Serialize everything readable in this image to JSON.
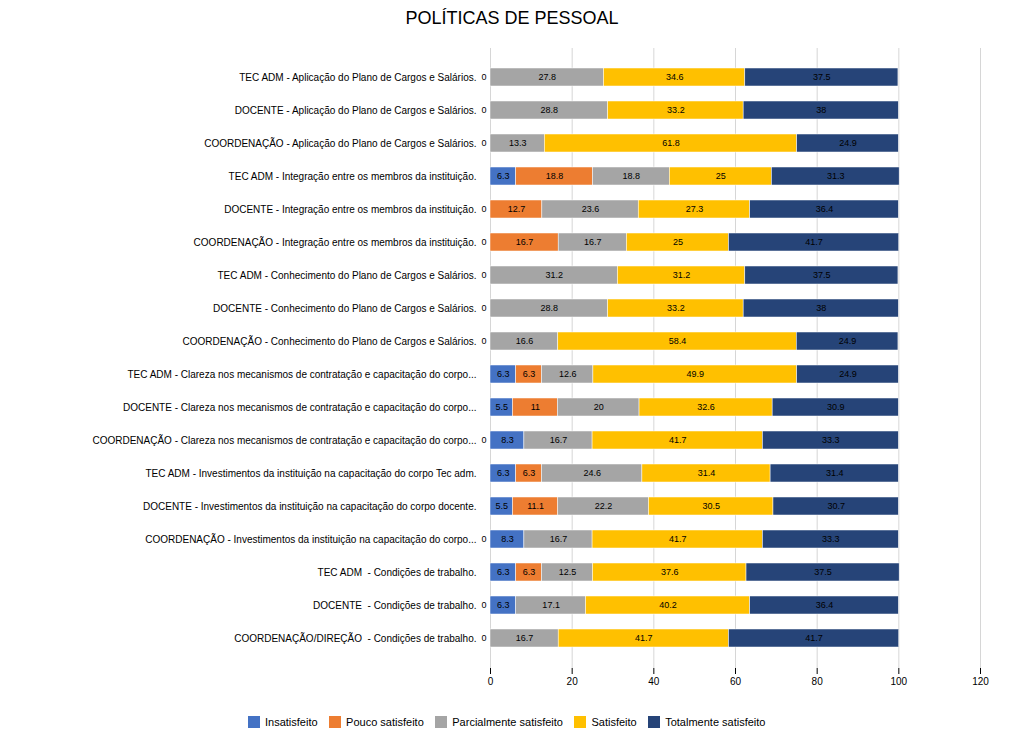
{
  "chart_data": {
    "type": "bar",
    "title": "POLÍTICAS DE PESSOAL",
    "orientation": "horizontal",
    "stacked": true,
    "data_labels": true,
    "grid": true,
    "legend": "bottom",
    "categories": [
      "TEC ADM - Aplicação do Plano de Cargos e Salários.",
      "DOCENTE - Aplicação do Plano de Cargos e Salários.",
      "COORDENAÇÃO - Aplicação do Plano de Cargos e Salários.",
      "TEC ADM - Integração entre os membros da instituição.",
      "DOCENTE - Integração entre os membros da instituição.",
      "COORDENAÇÃO - Integração entre os membros da instituição.",
      "TEC ADM - Conhecimento do Plano de Cargos e Salários.",
      "DOCENTE - Conhecimento do Plano de Cargos e Salários.",
      "COORDENAÇÃO - Conhecimento do Plano de Cargos e Salários.",
      "TEC ADM - Clareza nos mecanismos de contratação e capacitação do corpo...",
      "DOCENTE - Clareza nos mecanismos de contratação e capacitação do corpo...",
      "COORDENAÇÃO - Clareza nos mecanismos de contratação e capacitação do corpo...",
      "TEC ADM - Investimentos da instituição na capacitação do corpo Tec adm.",
      "DOCENTE - Investimentos da instituição na capacitação do corpo docente.",
      "COORDENAÇÃO - Investimentos da instituição na capacitação do corpo...",
      "TEC ADM  - Condições de trabalho.",
      "DOCENTE  - Condições de trabalho.",
      "COORDENAÇÃO/DIREÇÃO  - Condições de trabalho."
    ],
    "series": [
      {
        "name": "Insatisfeito",
        "color": "#4472C4",
        "values": [
          0,
          0,
          0,
          6.3,
          0,
          0,
          0,
          0,
          0,
          6.3,
          5.5,
          8.3,
          6.3,
          5.5,
          8.3,
          6.3,
          6.3,
          0
        ]
      },
      {
        "name": "Pouco satisfeito",
        "color": "#ED7D31",
        "values": [
          0,
          0,
          0,
          18.8,
          12.7,
          16.7,
          0,
          0,
          0,
          6.3,
          11,
          0,
          6.3,
          11.1,
          0,
          6.3,
          0,
          0
        ]
      },
      {
        "name": "Parcialmente satisfeito",
        "color": "#A5A5A5",
        "values": [
          27.8,
          28.8,
          13.3,
          18.8,
          23.6,
          16.7,
          31.2,
          28.8,
          16.6,
          12.6,
          20,
          16.7,
          24.6,
          22.2,
          16.7,
          12.5,
          17.1,
          16.7
        ]
      },
      {
        "name": "Satisfeito",
        "color": "#FFC000",
        "values": [
          34.6,
          33.2,
          61.8,
          25,
          27.3,
          25,
          31.2,
          33.2,
          58.4,
          49.9,
          32.6,
          41.7,
          31.4,
          30.5,
          41.7,
          37.6,
          40.2,
          41.7
        ]
      },
      {
        "name": "Totalmente satisfeito",
        "color": "#264478",
        "values": [
          37.5,
          38,
          24.9,
          31.3,
          36.4,
          41.7,
          37.5,
          38,
          24.9,
          24.9,
          30.9,
          33.3,
          31.4,
          30.7,
          33.3,
          37.5,
          36.4,
          41.7
        ]
      }
    ],
    "annotations": [
      {
        "text": "0",
        "category": "TEC ADM - Aplicação do Plano de Cargos e Salários."
      },
      {
        "text": "0",
        "category": "DOCENTE - Aplicação do Plano de Cargos e Salários."
      },
      {
        "text": "0",
        "category": "COORDENAÇÃO - Aplicação do Plano de Cargos e Salários."
      },
      {
        "text": "0",
        "category": "DOCENTE - Integração entre os membros da instituição."
      },
      {
        "text": "0",
        "category": "COORDENAÇÃO - Integração entre os membros da instituição."
      },
      {
        "text": "0",
        "category": "TEC ADM - Conhecimento do Plano de Cargos e Salários."
      },
      {
        "text": "0",
        "category": "DOCENTE - Conhecimento do Plano de Cargos e Salários."
      },
      {
        "text": "0",
        "category": "COORDENAÇÃO - Conhecimento do Plano de Cargos e Salários."
      },
      {
        "text": "0",
        "category": "COORDENAÇÃO - Clareza nos mecanismos de contratação e capacitação do corpo..."
      },
      {
        "text": "0",
        "category": "COORDENAÇÃO - Investimentos da instituição na capacitação do corpo..."
      },
      {
        "text": "0",
        "category": "DOCENTE  - Condições de trabalho."
      },
      {
        "text": "0",
        "category": "COORDENAÇÃO/DIREÇÃO  - Condições de trabalho."
      }
    ],
    "xlim": [
      0,
      120
    ],
    "xticks": [
      0,
      20,
      40,
      60,
      80,
      100,
      120
    ]
  }
}
